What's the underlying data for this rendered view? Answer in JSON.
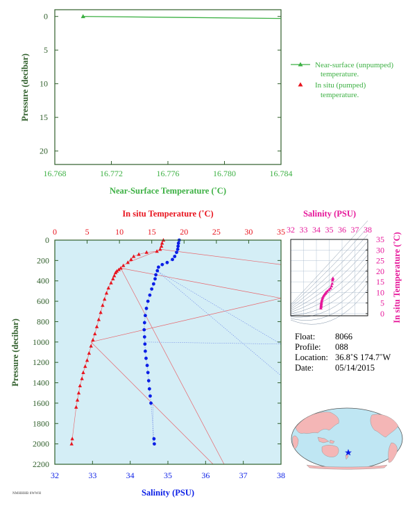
{
  "colors": {
    "green": "#3cb043",
    "red": "#e8141e",
    "blue": "#0a1ee6",
    "magenta": "#e6179a",
    "dark_green": "#2f5e2a",
    "panel_bg": "#d4eef6",
    "land": "#f4b6b6",
    "ocean": "#bfe6f3"
  },
  "chart_data": [
    {
      "type": "line",
      "xlabel": "Near-Surface Temperature (˚C)",
      "ylabel": "Pressure (decibar)",
      "xlim": [
        16.768,
        16.784
      ],
      "ylim": [
        22,
        -1
      ],
      "x_ticks": [
        "16.768",
        "16.772",
        "16.776",
        "16.780",
        "16.784"
      ],
      "y_ticks": [
        "0",
        "5",
        "10",
        "15",
        "20"
      ],
      "legend_placement": "right",
      "series": [
        {
          "name": "Near-surface (unpumped) temperature.",
          "legend_line2": "temperature.",
          "legend_line1": "Near-surface (unpumped)",
          "color": "#3cb043",
          "marker": "triangle",
          "points": [
            [
              16.77,
              0.0
            ]
          ],
          "line": [
            [
              16.77,
              0.0
            ],
            [
              16.784,
              0.3
            ]
          ]
        },
        {
          "name": "In situ (pumped) temperature.",
          "legend_line1": "In situ (pumped)",
          "legend_line2": "temperature.",
          "color": "#e8141e",
          "marker": "triangle",
          "points": []
        }
      ]
    },
    {
      "type": "scatter",
      "top_xlabel": "In situ Temperature (˚C)",
      "bottom_xlabel": "Salinity (PSU)",
      "ylabel": "Pressure (decibar)",
      "temp_xlim": [
        0,
        35
      ],
      "sal_xlim": [
        32,
        38
      ],
      "ylim": [
        2200,
        0
      ],
      "temp_ticks": [
        "0",
        "5",
        "10",
        "15",
        "20",
        "25",
        "30",
        "35"
      ],
      "sal_ticks": [
        "32",
        "33",
        "34",
        "35",
        "36",
        "37",
        "38"
      ],
      "y_ticks": [
        "0",
        "200",
        "400",
        "600",
        "800",
        "1000",
        "1200",
        "1400",
        "1600",
        "1800",
        "2000",
        "2200"
      ],
      "temperature_series": {
        "name": "In situ Temperature",
        "color": "#e8141e",
        "points": [
          [
            16.8,
            0
          ],
          [
            16.6,
            30
          ],
          [
            16.5,
            60
          ],
          [
            16.3,
            90
          ],
          [
            15.8,
            110
          ],
          [
            14.2,
            120
          ],
          [
            13.0,
            140
          ],
          [
            12.2,
            160
          ],
          [
            11.8,
            190
          ],
          [
            11.3,
            220
          ],
          [
            10.6,
            250
          ],
          [
            10.2,
            275
          ],
          [
            9.9,
            290
          ],
          [
            9.6,
            305
          ],
          [
            9.4,
            320
          ],
          [
            9.2,
            350
          ],
          [
            9.0,
            380
          ],
          [
            8.7,
            420
          ],
          [
            8.3,
            470
          ],
          [
            8.0,
            520
          ],
          [
            7.7,
            580
          ],
          [
            7.4,
            640
          ],
          [
            7.1,
            710
          ],
          [
            6.8,
            780
          ],
          [
            6.5,
            850
          ],
          [
            6.2,
            920
          ],
          [
            5.9,
            980
          ],
          [
            5.6,
            1040
          ],
          [
            5.3,
            1110
          ],
          [
            5.0,
            1180
          ],
          [
            4.7,
            1240
          ],
          [
            4.4,
            1300
          ],
          [
            4.2,
            1360
          ],
          [
            3.9,
            1430
          ],
          [
            3.7,
            1500
          ],
          [
            3.5,
            1570
          ],
          [
            3.3,
            1640
          ],
          [
            2.7,
            1950
          ],
          [
            2.6,
            2000
          ]
        ],
        "connectors": [
          [
            [
              16.5,
              90
            ],
            [
              11.3,
              220
            ]
          ],
          [
            [
              16.3,
              90
            ],
            [
              35,
              240
            ]
          ],
          [
            [
              10.2,
              275
            ],
            [
              35,
              570
            ]
          ],
          [
            [
              10.2,
              275
            ],
            [
              26.2,
              2200
            ]
          ],
          [
            [
              5.6,
              1000
            ],
            [
              35,
              570
            ]
          ],
          [
            [
              5.6,
              1000
            ],
            [
              24.5,
              2200
            ]
          ]
        ]
      },
      "salinity_series": {
        "name": "Salinity",
        "color": "#0a1ee6",
        "points": [
          [
            35.3,
            0
          ],
          [
            35.28,
            30
          ],
          [
            35.27,
            60
          ],
          [
            35.26,
            90
          ],
          [
            35.23,
            120
          ],
          [
            35.18,
            160
          ],
          [
            35.12,
            190
          ],
          [
            34.98,
            220
          ],
          [
            34.85,
            240
          ],
          [
            34.75,
            265
          ],
          [
            34.72,
            300
          ],
          [
            34.68,
            340
          ],
          [
            34.66,
            380
          ],
          [
            34.62,
            430
          ],
          [
            34.57,
            480
          ],
          [
            34.52,
            540
          ],
          [
            34.47,
            600
          ],
          [
            34.43,
            670
          ],
          [
            34.4,
            740
          ],
          [
            34.38,
            810
          ],
          [
            34.37,
            880
          ],
          [
            34.38,
            950
          ],
          [
            34.39,
            1020
          ],
          [
            34.4,
            1090
          ],
          [
            34.42,
            1160
          ],
          [
            34.45,
            1230
          ],
          [
            34.47,
            1300
          ],
          [
            34.49,
            1380
          ],
          [
            34.51,
            1460
          ],
          [
            34.53,
            1530
          ],
          [
            34.55,
            1600
          ],
          [
            34.63,
            1950
          ],
          [
            34.64,
            2000
          ]
        ],
        "connectors": [
          [
            [
              34.7,
              300
            ],
            [
              38,
              1020
            ]
          ],
          [
            [
              34.7,
              300
            ],
            [
              38,
              1330
            ]
          ],
          [
            [
              34.38,
              1000
            ],
            [
              38,
              1020
            ]
          ],
          [
            [
              34.6,
              1600
            ],
            [
              34.6,
              2000
            ]
          ]
        ]
      }
    },
    {
      "type": "scatter",
      "top_xlabel": "Salinity (PSU)",
      "right_ylabel": "In situ Temperature (˚C)",
      "xlim": [
        32,
        38
      ],
      "ylim": [
        -1,
        35
      ],
      "x_ticks": [
        "32",
        "33",
        "34",
        "35",
        "36",
        "37",
        "38"
      ],
      "y_ticks": [
        "0",
        "5",
        "10",
        "15",
        "20",
        "25",
        "30",
        "35"
      ],
      "color": "#e6179a",
      "points": [
        [
          34.35,
          2.6
        ],
        [
          34.36,
          3.3
        ],
        [
          34.37,
          3.6
        ],
        [
          34.37,
          4.0
        ],
        [
          34.38,
          4.5
        ],
        [
          34.39,
          5.0
        ],
        [
          34.4,
          5.6
        ],
        [
          34.42,
          6.2
        ],
        [
          34.45,
          6.8
        ],
        [
          34.48,
          7.4
        ],
        [
          34.52,
          8.0
        ],
        [
          34.57,
          8.5
        ],
        [
          34.63,
          9.0
        ],
        [
          34.7,
          9.5
        ],
        [
          34.75,
          10.0
        ],
        [
          34.85,
          10.6
        ],
        [
          34.98,
          11.3
        ],
        [
          35.1,
          12.0
        ],
        [
          35.18,
          13.0
        ],
        [
          35.23,
          14.2
        ],
        [
          35.26,
          15.8
        ],
        [
          35.27,
          16.4
        ],
        [
          35.29,
          16.7
        ]
      ]
    }
  ],
  "float_info": {
    "float_label": "Float:",
    "float_value": "8066",
    "profile_label": "Profile:",
    "profile_value": "088",
    "location_label": "Location:",
    "location_value": "36.8˚S  174.7˚W",
    "date_label": "Date:",
    "date_value": "05/14/2015"
  },
  "footer_text": "NMHHHB 8WWH"
}
